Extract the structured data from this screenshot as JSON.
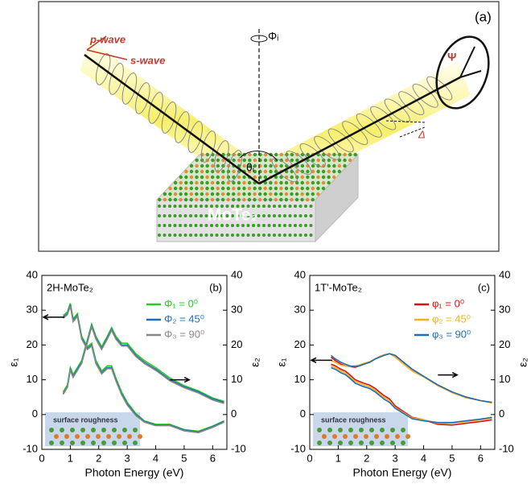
{
  "figure": {
    "panel_label": "(a)",
    "p_wave": "p-wave",
    "s_wave": "s-wave",
    "azimuth": "Φᵢ",
    "incidence": "θᵢ",
    "psi": "Ψ",
    "delta": "Δ",
    "sample": "MoTe₂"
  },
  "chart_data": [
    {
      "type": "line",
      "panel_label": "(b)",
      "sample_label": "2H-MoTe₂",
      "inset_label": "surface roughness",
      "x_label": "Photon Energy (eV)",
      "y_label": "ε₁",
      "y2_label": "ε₂",
      "x": [
        0.75,
        0.9,
        1.0,
        1.1,
        1.25,
        1.4,
        1.6,
        1.75,
        1.9,
        2.1,
        2.3,
        2.45,
        2.6,
        2.8,
        3.0,
        3.3,
        3.6,
        4.0,
        4.5,
        5.0,
        5.5,
        6.0,
        6.4
      ],
      "xlim": [
        0,
        6.5
      ],
      "xticks": [
        0,
        1,
        2,
        3,
        4,
        5,
        6
      ],
      "ylim": [
        -10,
        40
      ],
      "yticks": [
        -10,
        0,
        10,
        20,
        30,
        40
      ],
      "y2lim": [
        -10,
        40
      ],
      "y2ticks": [
        -10,
        0,
        10,
        20,
        30,
        40
      ],
      "legend": "upper right",
      "series": [
        {
          "name": "Φ₁ = 0⁰",
          "color": "#22cc22",
          "values": [
            28.5,
            29.5,
            32,
            27.5,
            29,
            22.5,
            19.5,
            20.5,
            15.5,
            12.5,
            14,
            14,
            10.5,
            6.5,
            3.5,
            0.3,
            -1.8,
            -2.8,
            -2.8,
            -4.3,
            -4.8,
            -3.3,
            -1.8
          ],
          "values_y2": [
            6.5,
            8.5,
            13.5,
            11.5,
            13.5,
            15.5,
            21.5,
            26,
            22.5,
            19.5,
            22.5,
            25,
            22.5,
            20.5,
            20.5,
            17.5,
            15.5,
            13.5,
            10.5,
            8.3,
            6.8,
            4.8,
            3.8
          ]
        },
        {
          "name": "Φ₂ = 45⁰",
          "color": "#1f6fb4",
          "values": [
            28,
            29,
            31.5,
            27,
            28.5,
            22,
            19,
            20,
            15,
            12,
            13.5,
            13.5,
            10,
            6,
            3,
            0,
            -2,
            -3,
            -3,
            -4.5,
            -5,
            -3.5,
            -2
          ],
          "values_y2": [
            6,
            8,
            13,
            11,
            13,
            15,
            21,
            25.5,
            22,
            19,
            22,
            24.5,
            22,
            20,
            20,
            17,
            15,
            13,
            10,
            8,
            6.5,
            4.5,
            3.5
          ]
        },
        {
          "name": "Φ₃ = 90⁰",
          "color": "#888888",
          "values": [
            27.7,
            28.7,
            31.2,
            26.7,
            28.2,
            21.7,
            18.7,
            19.7,
            14.7,
            11.7,
            13.2,
            13.2,
            9.7,
            5.7,
            2.7,
            -0.3,
            -2.2,
            -3.2,
            -3.2,
            -4.7,
            -5.2,
            -3.7,
            -2.2
          ],
          "values_y2": [
            5.8,
            7.8,
            12.7,
            10.7,
            12.7,
            14.7,
            20.7,
            25.2,
            21.7,
            18.7,
            21.7,
            24.2,
            21.7,
            19.7,
            19.7,
            16.7,
            14.7,
            12.7,
            9.7,
            7.7,
            6.2,
            4.2,
            3.2
          ]
        }
      ]
    },
    {
      "type": "line",
      "panel_label": "(c)",
      "sample_label": "1T'-MoTe₂",
      "inset_label": "surface roughness",
      "x_label": "Photon Energy (eV)",
      "y_label": "ε₁",
      "y2_label": "ε₂",
      "x": [
        0.75,
        0.9,
        1.0,
        1.1,
        1.25,
        1.4,
        1.6,
        1.75,
        1.9,
        2.1,
        2.3,
        2.45,
        2.6,
        2.8,
        3.0,
        3.3,
        3.6,
        4.0,
        4.5,
        5.0,
        5.5,
        6.0,
        6.4
      ],
      "xlim": [
        0,
        6.5
      ],
      "xticks": [
        0,
        1,
        2,
        3,
        4,
        5,
        6
      ],
      "ylim": [
        -10,
        40
      ],
      "yticks": [
        -10,
        0,
        10,
        20,
        30,
        40
      ],
      "y2lim": [
        -10,
        40
      ],
      "y2ticks": [
        -10,
        0,
        10,
        20,
        30,
        40
      ],
      "legend": "upper right",
      "series": [
        {
          "name": "φ₁ = 0⁰",
          "color": "#dd1111",
          "values": [
            14.5,
            14,
            13.5,
            13,
            12.5,
            11.5,
            10,
            9.5,
            9,
            8.5,
            7.5,
            6.5,
            5.5,
            4.5,
            2.5,
            0.8,
            -0.8,
            -1.5,
            -2.8,
            -3,
            -2.5,
            -2,
            -1.5
          ],
          "values_y2": [
            16.5,
            15.5,
            15,
            14.5,
            14,
            13.8,
            13.6,
            14,
            14.5,
            15,
            16,
            16.5,
            17,
            17.5,
            17,
            15,
            13,
            11,
            8.5,
            6.5,
            5,
            4,
            3.5
          ]
        },
        {
          "name": "φ₂ = 45⁰",
          "color": "#f0b020",
          "values": [
            14,
            13.5,
            13,
            12.5,
            12,
            11,
            9.5,
            9,
            8.5,
            8,
            7,
            6,
            5,
            4,
            2,
            0.5,
            -1,
            -1.5,
            -2.5,
            -2.5,
            -2,
            -1.5,
            -1
          ],
          "values_y2": [
            15.5,
            15,
            14.5,
            14.2,
            14,
            13.8,
            14,
            14.3,
            14.7,
            15.2,
            16,
            16.7,
            17.2,
            17.5,
            16.5,
            14.5,
            12.5,
            10.8,
            8.3,
            6.3,
            4.8,
            4,
            3.3
          ]
        },
        {
          "name": "φ₃ = 90⁰",
          "color": "#1f6fb4",
          "values": [
            13.5,
            13,
            12.5,
            12,
            11.5,
            10.5,
            9,
            8.5,
            8,
            7.5,
            6.5,
            5.5,
            4.5,
            3.5,
            1.8,
            0.3,
            -1.2,
            -1.8,
            -2.3,
            -2.3,
            -1.8,
            -1.3,
            -0.8
          ],
          "values_y2": [
            17,
            16,
            15.5,
            15,
            14.5,
            14,
            13.8,
            14,
            14.5,
            15,
            16,
            16.5,
            17,
            17.5,
            17,
            15,
            13,
            11,
            8.5,
            6.5,
            5,
            4,
            3.5
          ]
        }
      ]
    }
  ]
}
